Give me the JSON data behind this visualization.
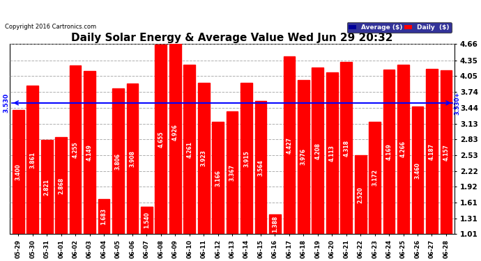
{
  "title": "Daily Solar Energy & Average Value Wed Jun 29 20:32",
  "copyright": "Copyright 2016 Cartronics.com",
  "bar_color": "#ff0000",
  "average_value": 3.53,
  "average_label": "3.530",
  "yticks": [
    1.01,
    1.31,
    1.61,
    1.92,
    2.22,
    2.53,
    2.83,
    3.13,
    3.44,
    3.74,
    4.05,
    4.35,
    4.66
  ],
  "ymin": 1.01,
  "ymax": 4.66,
  "categories": [
    "05-29",
    "05-30",
    "05-31",
    "06-01",
    "06-02",
    "06-03",
    "06-04",
    "06-05",
    "06-06",
    "06-07",
    "06-08",
    "06-09",
    "06-10",
    "06-11",
    "06-12",
    "06-13",
    "06-14",
    "06-15",
    "06-16",
    "06-17",
    "06-18",
    "06-19",
    "06-20",
    "06-21",
    "06-22",
    "06-23",
    "06-24",
    "06-25",
    "06-26",
    "06-27",
    "06-28"
  ],
  "values": [
    3.4,
    3.861,
    2.821,
    2.868,
    4.255,
    4.149,
    1.683,
    3.806,
    3.908,
    1.54,
    4.655,
    4.926,
    4.261,
    3.923,
    3.166,
    3.367,
    3.915,
    3.564,
    1.388,
    4.427,
    3.976,
    4.208,
    4.113,
    4.318,
    2.52,
    3.172,
    4.169,
    4.266,
    3.46,
    4.187,
    4.157
  ],
  "legend_avg_color": "#000099",
  "legend_daily_color": "#ff0000",
  "bg_color": "#ffffff",
  "grid_color": "#999999",
  "title_fontsize": 11,
  "label_fontsize": 5.5,
  "ytick_fontsize": 7.5,
  "xtick_fontsize": 6.0
}
